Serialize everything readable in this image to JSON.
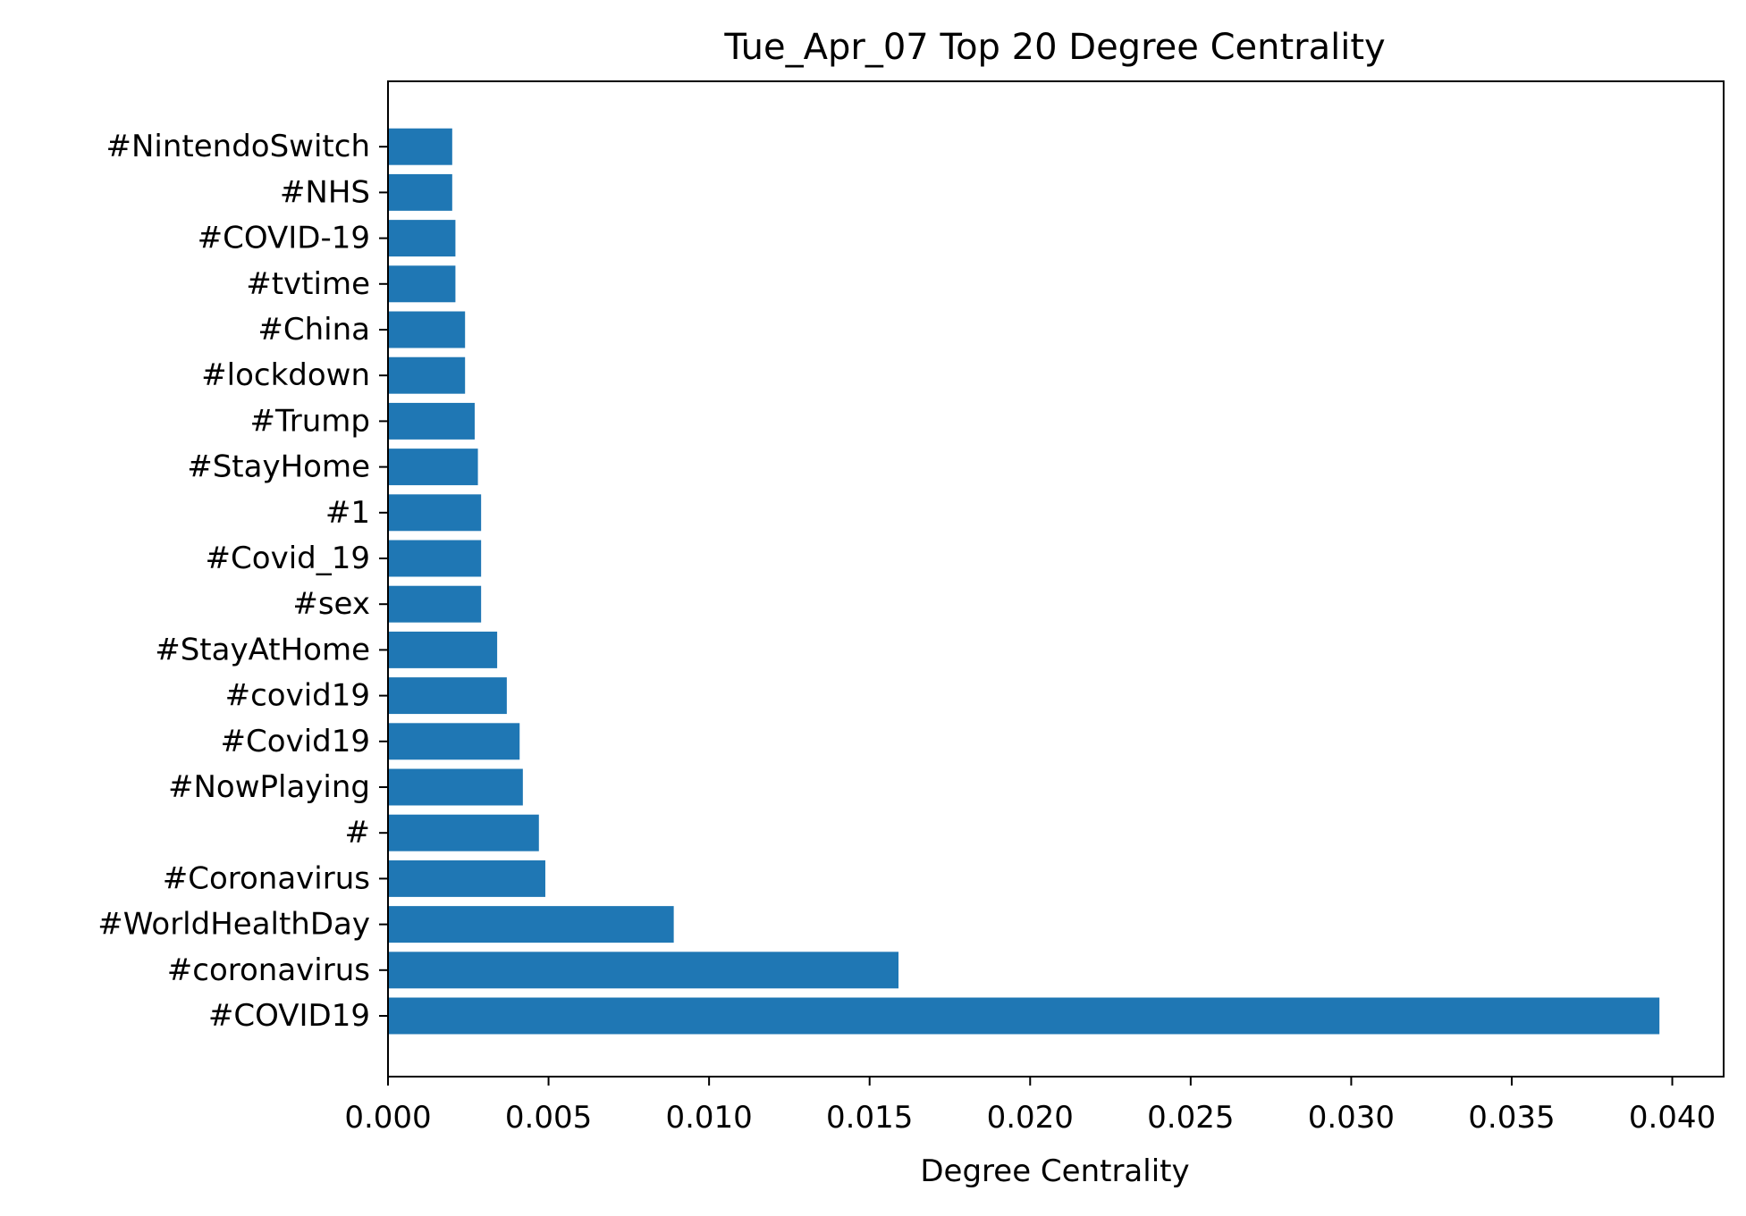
{
  "chart_data": {
    "type": "bar",
    "orientation": "horizontal",
    "title": "Tue_Apr_07 Top 20 Degree Centrality",
    "xlabel": "Degree Centrality",
    "ylabel": "",
    "xlim": [
      0,
      0.0416
    ],
    "xticks": [
      0.0,
      0.005,
      0.01,
      0.015,
      0.02,
      0.025,
      0.03,
      0.035,
      0.04
    ],
    "xtick_labels": [
      "0.000",
      "0.005",
      "0.010",
      "0.015",
      "0.020",
      "0.025",
      "0.030",
      "0.035",
      "0.040"
    ],
    "grid": false,
    "legend": "none",
    "bar_color": "#1f77b4",
    "categories": [
      "#COVID19",
      "#coronavirus",
      "#WorldHealthDay",
      "#Coronavirus",
      "#",
      "#NowPlaying",
      "#Covid19",
      "#covid19",
      "#StayAtHome",
      "#sex",
      "#Covid_19",
      "#1",
      "#StayHome",
      "#Trump",
      "#lockdown",
      "#China",
      "#tvtime",
      "#COVID-19",
      "#NHS",
      "#NintendoSwitch"
    ],
    "values": [
      0.0396,
      0.0159,
      0.0089,
      0.0049,
      0.0047,
      0.0042,
      0.0041,
      0.0037,
      0.0034,
      0.0029,
      0.0029,
      0.0029,
      0.0028,
      0.0027,
      0.0024,
      0.0024,
      0.0021,
      0.0021,
      0.002,
      0.002
    ]
  }
}
